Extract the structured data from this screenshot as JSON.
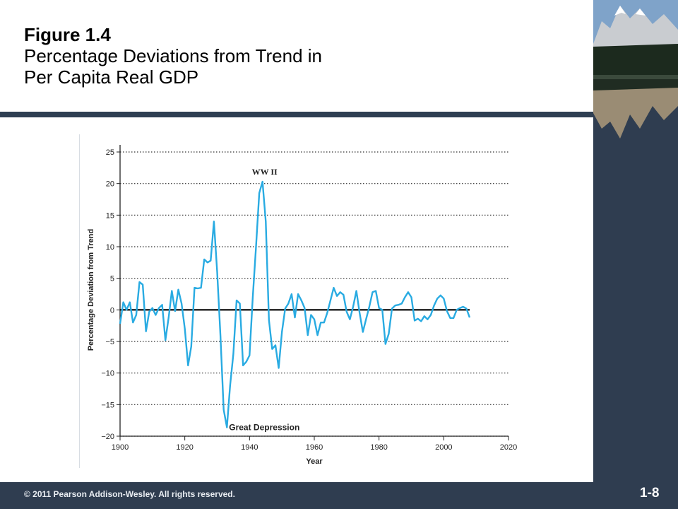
{
  "slide": {
    "title_line1": "Figure 1.4",
    "title_line2": "Percentage Deviations from Trend in",
    "title_line3": "Per Capita Real GDP",
    "footer": "© 2011 Pearson Addison-Wesley. All rights reserved.",
    "page_number": "1-8"
  },
  "colors": {
    "series": "#29abe2",
    "zero_line": "#000000",
    "gridline": "#333333",
    "bars": "#2f3d50"
  },
  "chart_data": {
    "type": "line",
    "title": "",
    "xlabel": "Year",
    "ylabel": "Percentage Deviation from Trend",
    "xlim": [
      1900,
      2020
    ],
    "ylim": [
      -20,
      25
    ],
    "x_ticks": [
      1900,
      1920,
      1940,
      1960,
      1980,
      2000,
      2020
    ],
    "y_ticks": [
      25,
      20,
      15,
      10,
      5,
      0,
      -5,
      -10,
      -15,
      -20
    ],
    "y_tick_labels": [
      "25",
      "20",
      "15",
      "10",
      "5",
      "0",
      "−5",
      "−10",
      "−15",
      "−20"
    ],
    "grid": "horizontal dotted",
    "annotations": [
      {
        "text": "WW II",
        "x": 1944,
        "y": 20.5
      },
      {
        "text": "Great Depression",
        "x": 1933,
        "y": -18.8
      }
    ],
    "series": [
      {
        "points": [
          [
            1900,
            -2.2
          ],
          [
            1901,
            1.2
          ],
          [
            1902,
            0.0
          ],
          [
            1903,
            1.2
          ],
          [
            1904,
            -2.0
          ],
          [
            1905,
            -0.8
          ],
          [
            1906,
            4.4
          ],
          [
            1907,
            4.0
          ],
          [
            1908,
            -3.4
          ],
          [
            1909,
            -0.3
          ],
          [
            1910,
            0.3
          ],
          [
            1911,
            -0.8
          ],
          [
            1912,
            0.3
          ],
          [
            1913,
            0.8
          ],
          [
            1914,
            -4.8
          ],
          [
            1915,
            -1.2
          ],
          [
            1916,
            3.0
          ],
          [
            1917,
            -0.2
          ],
          [
            1918,
            3.2
          ],
          [
            1919,
            1.0
          ],
          [
            1920,
            -3.0
          ],
          [
            1921,
            -8.8
          ],
          [
            1922,
            -5.8
          ],
          [
            1923,
            3.5
          ],
          [
            1924,
            3.4
          ],
          [
            1925,
            3.5
          ],
          [
            1926,
            8.0
          ],
          [
            1927,
            7.5
          ],
          [
            1928,
            7.8
          ],
          [
            1929,
            14.0
          ],
          [
            1930,
            6.0
          ],
          [
            1931,
            -4.0
          ],
          [
            1932,
            -15.8
          ],
          [
            1933,
            -18.6
          ],
          [
            1934,
            -12.0
          ],
          [
            1935,
            -7.0
          ],
          [
            1936,
            1.5
          ],
          [
            1937,
            1.0
          ],
          [
            1938,
            -8.8
          ],
          [
            1939,
            -8.2
          ],
          [
            1940,
            -7.2
          ],
          [
            1941,
            2.0
          ],
          [
            1942,
            10.0
          ],
          [
            1943,
            18.5
          ],
          [
            1944,
            20.3
          ],
          [
            1945,
            14.0
          ],
          [
            1946,
            -1.6
          ],
          [
            1947,
            -6.2
          ],
          [
            1948,
            -5.6
          ],
          [
            1949,
            -9.2
          ],
          [
            1950,
            -3.5
          ],
          [
            1951,
            0.2
          ],
          [
            1952,
            1.0
          ],
          [
            1953,
            2.5
          ],
          [
            1954,
            -1.2
          ],
          [
            1955,
            2.5
          ],
          [
            1956,
            1.5
          ],
          [
            1957,
            0.3
          ],
          [
            1958,
            -4.0
          ],
          [
            1959,
            -0.8
          ],
          [
            1960,
            -1.5
          ],
          [
            1961,
            -4.0
          ],
          [
            1962,
            -2.0
          ],
          [
            1963,
            -2.0
          ],
          [
            1964,
            -0.5
          ],
          [
            1965,
            1.5
          ],
          [
            1966,
            3.5
          ],
          [
            1967,
            2.2
          ],
          [
            1968,
            2.8
          ],
          [
            1969,
            2.4
          ],
          [
            1970,
            -0.3
          ],
          [
            1971,
            -1.5
          ],
          [
            1972,
            0.5
          ],
          [
            1973,
            3.0
          ],
          [
            1974,
            -0.5
          ],
          [
            1975,
            -3.5
          ],
          [
            1976,
            -1.5
          ],
          [
            1977,
            0.5
          ],
          [
            1978,
            2.8
          ],
          [
            1979,
            3.0
          ],
          [
            1980,
            0.3
          ],
          [
            1981,
            0.0
          ],
          [
            1982,
            -5.4
          ],
          [
            1983,
            -3.8
          ],
          [
            1984,
            0.2
          ],
          [
            1985,
            0.7
          ],
          [
            1986,
            0.8
          ],
          [
            1987,
            1.0
          ],
          [
            1988,
            2.0
          ],
          [
            1989,
            2.8
          ],
          [
            1990,
            2.0
          ],
          [
            1991,
            -1.7
          ],
          [
            1992,
            -1.4
          ],
          [
            1993,
            -1.8
          ],
          [
            1994,
            -1.0
          ],
          [
            1995,
            -1.5
          ],
          [
            1996,
            -0.8
          ],
          [
            1997,
            0.7
          ],
          [
            1998,
            1.8
          ],
          [
            1999,
            2.3
          ],
          [
            2000,
            1.8
          ],
          [
            2001,
            -0.2
          ],
          [
            2002,
            -1.3
          ],
          [
            2003,
            -1.3
          ],
          [
            2004,
            0.0
          ],
          [
            2005,
            0.3
          ],
          [
            2006,
            0.5
          ],
          [
            2007,
            0.2
          ],
          [
            2008,
            -1.2
          ]
        ]
      }
    ]
  }
}
